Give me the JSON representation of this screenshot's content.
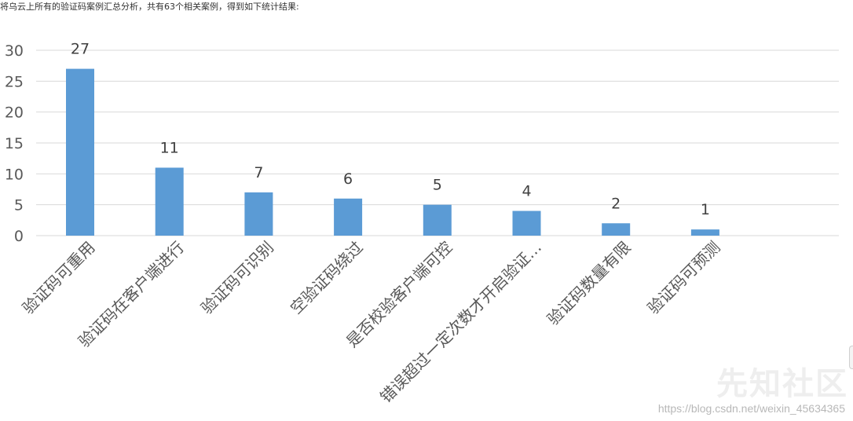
{
  "intro_text": "将乌云上所有的验证码案例汇总分析，共有63个相关案例，得到如下统计结果:",
  "watermark": {
    "logo_text": "先知社区",
    "url_text": "https://blog.csdn.net/weixin_45634365"
  },
  "colors": {
    "bar": "#5b9bd5",
    "grid": "#d9d9d9",
    "axis_text": "#595959",
    "label_text": "#404040"
  },
  "chart_data": {
    "type": "bar",
    "categories": [
      "验证码可重用",
      "验证码在客户端进行",
      "验证码可识别",
      "空验证码绕过",
      "是否校验客户端可控",
      "错误超过一定次数才开启验证…",
      "验证码数量有限",
      "验证码可预测"
    ],
    "values": [
      27,
      11,
      7,
      6,
      5,
      4,
      2,
      1
    ],
    "ylim": [
      0,
      30
    ],
    "yticks": [
      0,
      5,
      10,
      15,
      20,
      25,
      30
    ],
    "grid": true,
    "data_labels": true,
    "title": "",
    "xlabel": "",
    "ylabel": ""
  }
}
